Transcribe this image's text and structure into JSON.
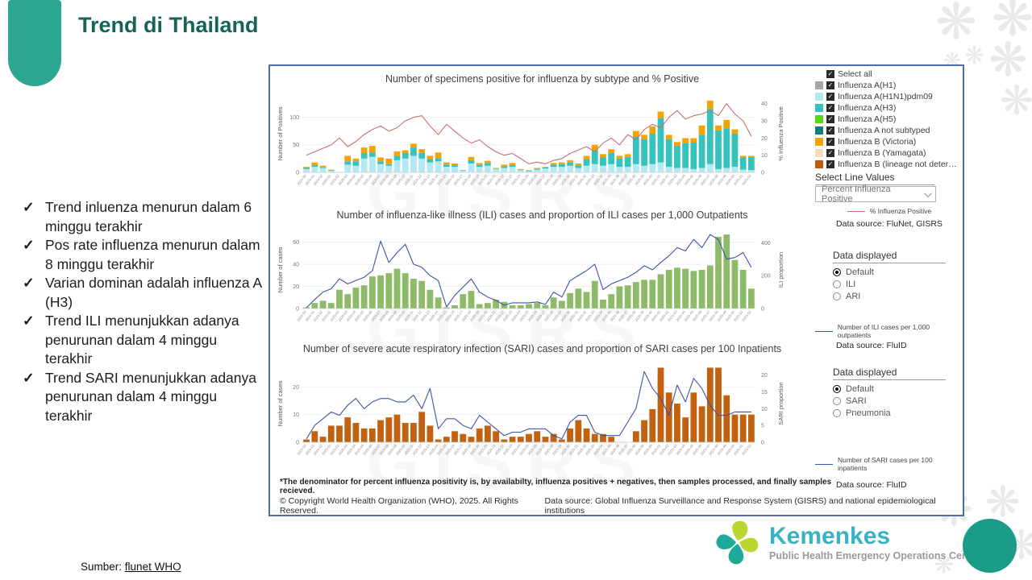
{
  "slide": {
    "title": "Trend di Thailand",
    "source_label": "Sumber:",
    "source_link": "flunet WHO",
    "accent_color": "#2CA792",
    "deco_glyph": "❋",
    "bullets": [
      "Trend inluenza menurun dalam 6 minggu terakhir",
      "Pos rate influenza menurun dalam 8 minggu terakhir",
      "Varian dominan adalah influenza A (H3)",
      "Trend ILI menunjukkan adanya penurunan dalam 4 minggu terakhir",
      "Trend SARI menunjukkan adanya penurunan dalam 4 minggu terakhir"
    ]
  },
  "logo": {
    "brand": "Kemenkes",
    "subtitle": "Public Health Emergency Operations Center"
  },
  "panel1": {
    "legend_items": [
      {
        "label": "Select all",
        "color": null
      },
      {
        "label": "Influenza A(H1)",
        "color": "#a6a6a6"
      },
      {
        "label": "Influenza A(H1N1)pdm09",
        "color": "#b3e9f2"
      },
      {
        "label": "Influenza A(H3)",
        "color": "#36c3bd"
      },
      {
        "label": "Influenza A(H5)",
        "color": "#56d914"
      },
      {
        "label": "Influenza A not subtyped",
        "color": "#0e7d78"
      },
      {
        "label": "Influenza B (Victoria)",
        "color": "#f5a300"
      },
      {
        "label": "Influenza B (Yamagata)",
        "color": "#f7dcbc"
      },
      {
        "label": "Influenza B (lineage not deter…",
        "color": "#c25a0e"
      }
    ],
    "select_line_label": "Select Line Values",
    "dropdown_value": "Percent Influenza Positive",
    "line_legend": "% Influenza Positive",
    "line_color": "#c9706e",
    "data_source": "Data source: FluNet, GISRS"
  },
  "panel2": {
    "header": "Data displayed",
    "options": [
      "Default",
      "ILI",
      "ARI"
    ],
    "selected": "Default",
    "line_legend": "Number of ILI cases per 1,000 outpatients",
    "line_color": "#3b54a5",
    "data_source": "Data source: FluID"
  },
  "panel3": {
    "header": "Data displayed",
    "options": [
      "Default",
      "SARI",
      "Pneumonia"
    ],
    "selected": "Default",
    "line_legend": "Number of SARI cases per 100 inpatients",
    "line_color": "#3b54a5",
    "data_source": "Data source: FluID"
  },
  "footer": {
    "footnote": "*The denominator for percent influenza positivity is, by availabilty, influenza positives + negatives, then samples processed, and finally samples recieved.",
    "copyright": "© Copyright World Health Organization (WHO), 2025. All Rights Reserved.",
    "bottom_source": "Data source: Global Influenza Surveillance and Response System (GISRS) and national epidemiological institutions"
  },
  "watermark_text": "GISRS",
  "chart_data": [
    {
      "type": "bar",
      "stacked": true,
      "title": "Number of specimens positive for influenza by subtype and % Positive",
      "ylabel": "Number of Positives",
      "y2label": "% Influenza Positive",
      "legend_position": "right",
      "categories": [
        "2024-50",
        "2024-51",
        "2024-52",
        "2025-01",
        "2025-02",
        "2025-03",
        "2025-04",
        "2025-05",
        "2025-06",
        "2025-07",
        "2025-08",
        "2025-09",
        "2025-10",
        "2025-11",
        "2025-12",
        "2025-13",
        "2025-14",
        "2025-15",
        "2025-16",
        "2025-17",
        "2025-18",
        "2025-19",
        "2025-20",
        "2025-21",
        "2025-22",
        "2025-23",
        "2025-24",
        "2025-25",
        "2025-26",
        "2025-27",
        "2025-28",
        "2025-29",
        "2025-30",
        "2025-31",
        "2025-32",
        "2025-33",
        "2025-34",
        "2025-35",
        "2025-36",
        "2025-37",
        "2025-38",
        "2025-39",
        "2025-40",
        "2025-41",
        "2025-42",
        "2025-43",
        "2025-44",
        "2025-45",
        "2025-46",
        "2025-47",
        "2025-48",
        "2025-49",
        "2025-50",
        "2025-51",
        "2025-52"
      ],
      "series": [
        {
          "name": "Influenza A(H1N1)pdm09",
          "color": "#b3e9f2",
          "values": [
            6,
            10,
            8,
            3,
            1,
            14,
            12,
            25,
            28,
            15,
            12,
            22,
            25,
            30,
            25,
            18,
            20,
            10,
            10,
            3,
            16,
            10,
            12,
            6,
            8,
            10,
            4,
            2,
            5,
            7,
            10,
            10,
            12,
            8,
            12,
            15,
            12,
            15,
            10,
            10,
            15,
            12,
            15,
            18,
            10,
            8,
            8,
            6,
            8,
            15,
            6,
            8,
            10,
            5,
            4
          ]
        },
        {
          "name": "Influenza A(H3)",
          "color": "#36c3bd",
          "values": [
            2,
            3,
            1,
            1,
            0,
            6,
            8,
            10,
            8,
            5,
            3,
            8,
            10,
            15,
            10,
            6,
            6,
            4,
            3,
            1,
            6,
            4,
            5,
            1,
            3,
            3,
            1,
            1,
            2,
            2,
            4,
            5,
            6,
            5,
            12,
            25,
            15,
            20,
            15,
            18,
            50,
            48,
            55,
            80,
            50,
            40,
            45,
            48,
            60,
            100,
            70,
            72,
            60,
            22,
            24
          ]
        },
        {
          "name": "Influenza B (Victoria)",
          "color": "#f5a300",
          "values": [
            2,
            5,
            3,
            1,
            0,
            10,
            5,
            10,
            12,
            7,
            10,
            8,
            5,
            7,
            7,
            6,
            10,
            4,
            3,
            0,
            6,
            3,
            4,
            1,
            3,
            4,
            1,
            1,
            1,
            1,
            3,
            3,
            4,
            3,
            6,
            10,
            6,
            7,
            5,
            5,
            10,
            8,
            13,
            12,
            8,
            7,
            9,
            8,
            17,
            15,
            9,
            15,
            8,
            3,
            2
          ]
        }
      ],
      "line": {
        "name": "% Influenza Positive",
        "color": "#c9706e",
        "axis": "right",
        "values": [
          10,
          12,
          14,
          16,
          20,
          15,
          18,
          22,
          25,
          27,
          24,
          26,
          30,
          32,
          33,
          27,
          22,
          28,
          24,
          20,
          17,
          19,
          15,
          12,
          10,
          11,
          8,
          5,
          6,
          5,
          7,
          8,
          11,
          13,
          15,
          12,
          17,
          20,
          16,
          22,
          19,
          25,
          28,
          26,
          32,
          36,
          31,
          33,
          34,
          36,
          33,
          40,
          34,
          30,
          21
        ]
      },
      "left_ticks": [
        0,
        50,
        100
      ],
      "left_max": 140,
      "right_ticks": [
        0,
        10,
        20,
        30,
        40
      ],
      "right_max": 45
    },
    {
      "type": "bar",
      "stacked": false,
      "title": "Number of influenza-like illness (ILI) cases and proportion of ILI cases per 1,000 Outpatients",
      "ylabel": "Number of cases",
      "y2label": "ILI proportion",
      "legend_position": "right",
      "categories": [
        "2024-50",
        "2024-51",
        "2024-52",
        "2025-01",
        "2025-02",
        "2025-03",
        "2025-04",
        "2025-05",
        "2025-06",
        "2025-07",
        "2025-08",
        "2025-09",
        "2025-10",
        "2025-11",
        "2025-12",
        "2025-13",
        "2025-14",
        "2025-15",
        "2025-16",
        "2025-17",
        "2025-18",
        "2025-19",
        "2025-20",
        "2025-21",
        "2025-22",
        "2025-23",
        "2025-24",
        "2025-25",
        "2025-26",
        "2025-27",
        "2025-28",
        "2025-29",
        "2025-30",
        "2025-31",
        "2025-32",
        "2025-33",
        "2025-34",
        "2025-35",
        "2025-36",
        "2025-37",
        "2025-38",
        "2025-39",
        "2025-40",
        "2025-41",
        "2025-42",
        "2025-43",
        "2025-44",
        "2025-45",
        "2025-46",
        "2025-47",
        "2025-48",
        "2025-49",
        "2025-50",
        "2025-51",
        "2025-52"
      ],
      "series": [
        {
          "name": "ILI cases",
          "color": "#8dbb6a",
          "values": [
            1,
            5,
            7,
            5,
            17,
            13,
            19,
            21,
            29,
            30,
            32,
            36,
            32,
            27,
            25,
            17,
            10,
            1,
            3,
            13,
            16,
            4,
            5,
            8,
            6,
            3,
            3,
            4,
            5,
            3,
            10,
            7,
            14,
            18,
            15,
            25,
            8,
            13,
            20,
            21,
            24,
            26,
            26,
            31,
            35,
            37,
            36,
            34,
            35,
            39,
            65,
            67,
            44,
            35,
            18
          ]
        }
      ],
      "line": {
        "name": "Number of ILI cases per 1,000 outpatients",
        "color": "#3b54a5",
        "axis": "right",
        "values": [
          5,
          55,
          100,
          120,
          180,
          150,
          170,
          190,
          230,
          410,
          280,
          340,
          390,
          270,
          250,
          200,
          170,
          10,
          80,
          130,
          180,
          100,
          70,
          50,
          20,
          35,
          35,
          35,
          40,
          25,
          100,
          70,
          170,
          200,
          230,
          270,
          115,
          150,
          170,
          190,
          220,
          260,
          235,
          280,
          320,
          370,
          350,
          420,
          370,
          450,
          420,
          300,
          310,
          340,
          250
        ]
      },
      "left_ticks": [
        0,
        20,
        40,
        60
      ],
      "left_max": 70,
      "right_ticks": [
        0,
        200,
        400
      ],
      "right_max": 470
    },
    {
      "type": "bar",
      "stacked": false,
      "title": "Number of severe acute respiratory infection (SARI) cases and proportion of SARI cases per 100 Inpatients",
      "ylabel": "Number of cases",
      "y2label": "SARI proportion",
      "legend_position": "right",
      "categories": [
        "2024-50",
        "2024-51",
        "2024-52",
        "2025-01",
        "2025-02",
        "2025-03",
        "2025-04",
        "2025-05",
        "2025-06",
        "2025-07",
        "2025-08",
        "2025-09",
        "2025-10",
        "2025-11",
        "2025-12",
        "2025-13",
        "2025-14",
        "2025-15",
        "2025-16",
        "2025-17",
        "2025-18",
        "2025-19",
        "2025-20",
        "2025-21",
        "2025-22",
        "2025-23",
        "2025-24",
        "2025-25",
        "2025-26",
        "2025-27",
        "2025-28",
        "2025-29",
        "2025-30",
        "2025-31",
        "2025-32",
        "2025-33",
        "2025-34",
        "2025-35",
        "2025-36",
        "2025-37",
        "2025-38",
        "2025-39",
        "2025-40",
        "2025-41",
        "2025-42",
        "2025-43",
        "2025-44",
        "2025-45",
        "2025-46",
        "2025-47",
        "2025-48",
        "2025-49",
        "2025-50",
        "2025-51",
        "2025-52"
      ],
      "series": [
        {
          "name": "SARI cases",
          "color": "#c2610f",
          "values": [
            1,
            4,
            2,
            6,
            6,
            9,
            7,
            5,
            5,
            8,
            9,
            10,
            7,
            7,
            11,
            6,
            1,
            2,
            4,
            3,
            2,
            5,
            6,
            4,
            1,
            2,
            2,
            3,
            4,
            2,
            3,
            1,
            5,
            8,
            5,
            3,
            3,
            2,
            0,
            0,
            4,
            8,
            12,
            27,
            18,
            14,
            9,
            18,
            13,
            27,
            27,
            17,
            10,
            10,
            10
          ]
        }
      ],
      "line": {
        "name": "Number of SARI cases per 100 inpatients",
        "color": "#3b54a5",
        "axis": "right",
        "values": [
          1,
          5,
          7,
          9,
          8,
          11,
          13,
          10,
          12,
          13,
          13,
          12,
          12,
          14,
          10,
          16,
          4,
          7,
          7,
          5,
          4,
          8,
          6,
          4,
          2,
          3,
          3,
          4,
          4,
          4,
          2,
          1,
          6,
          8,
          8,
          3,
          2,
          2,
          2,
          6,
          10,
          21,
          16,
          13,
          8,
          17,
          12,
          19,
          16,
          11,
          8,
          8,
          9,
          9,
          9
        ]
      },
      "left_ticks": [
        0,
        10,
        20
      ],
      "left_max": 28,
      "right_ticks": [
        0,
        5,
        10,
        15,
        20
      ],
      "right_max": 23
    }
  ]
}
